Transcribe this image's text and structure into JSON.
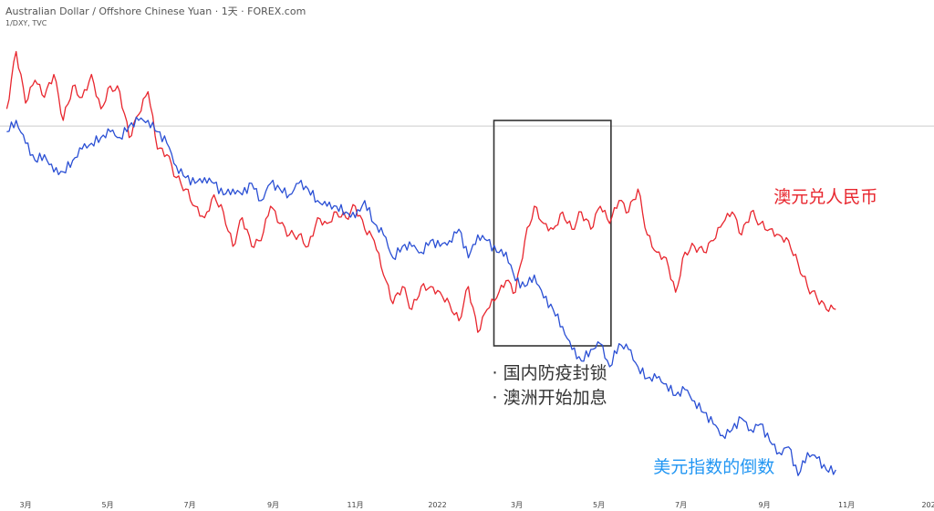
{
  "header": {
    "title": "Australian Dollar / Offshore Chinese Yuan · 1天 · FOREX.com",
    "subtitle": "1/DXY, TVC"
  },
  "annotations": {
    "box_lines": [
      "· 国内防疫封锁",
      "· 澳洲开始加息"
    ],
    "box_start": "2022-02-12",
    "box_end": "2022-05-10"
  },
  "chart_data": {
    "type": "line",
    "x_ticks": [
      {
        "date": "2021-03-01",
        "label": "3月"
      },
      {
        "date": "2021-05-01",
        "label": "5月"
      },
      {
        "date": "2021-07-01",
        "label": "7月"
      },
      {
        "date": "2021-09-01",
        "label": "9月"
      },
      {
        "date": "2021-11-01",
        "label": "11月"
      },
      {
        "date": "2022-01-01",
        "label": "2022"
      },
      {
        "date": "2022-03-01",
        "label": "3月"
      },
      {
        "date": "2022-05-01",
        "label": "5月"
      },
      {
        "date": "2022-07-01",
        "label": "7月"
      },
      {
        "date": "2022-09-01",
        "label": "9月"
      },
      {
        "date": "2022-11-01",
        "label": "11月"
      },
      {
        "date": "2023-01-01",
        "label": "202"
      }
    ],
    "xlim": [
      "2021-02-10",
      "2023-01-05"
    ],
    "ylim": [
      0.26,
      1.12
    ],
    "colors": {
      "red": "#e8262e",
      "blue": "#2a4fd4",
      "ref": "#cccccc"
    },
    "reference_line": 0.9,
    "series": [
      {
        "name": "澳元兑人民币",
        "color": "#e8262e",
        "x": [
          "2021-02-15",
          "2021-02-22",
          "2021-03-01",
          "2021-03-08",
          "2021-03-15",
          "2021-03-22",
          "2021-03-29",
          "2021-04-05",
          "2021-04-12",
          "2021-04-19",
          "2021-04-26",
          "2021-05-03",
          "2021-05-10",
          "2021-05-17",
          "2021-05-24",
          "2021-05-31",
          "2021-06-07",
          "2021-06-14",
          "2021-06-21",
          "2021-06-28",
          "2021-07-05",
          "2021-07-12",
          "2021-07-19",
          "2021-07-26",
          "2021-08-02",
          "2021-08-09",
          "2021-08-16",
          "2021-08-23",
          "2021-08-30",
          "2021-09-06",
          "2021-09-13",
          "2021-09-20",
          "2021-09-27",
          "2021-10-04",
          "2021-10-11",
          "2021-10-18",
          "2021-10-25",
          "2021-11-01",
          "2021-11-08",
          "2021-11-15",
          "2021-11-22",
          "2021-11-29",
          "2021-12-06",
          "2021-12-13",
          "2021-12-20",
          "2021-12-27",
          "2022-01-03",
          "2022-01-10",
          "2022-01-17",
          "2022-01-24",
          "2022-01-31",
          "2022-02-07",
          "2022-02-14",
          "2022-02-21",
          "2022-02-28",
          "2022-03-07",
          "2022-03-14",
          "2022-03-21",
          "2022-03-28",
          "2022-04-04",
          "2022-04-11",
          "2022-04-18",
          "2022-04-25",
          "2022-05-02",
          "2022-05-09",
          "2022-05-16",
          "2022-05-23",
          "2022-05-30",
          "2022-06-06",
          "2022-06-13",
          "2022-06-20",
          "2022-06-27",
          "2022-07-04",
          "2022-07-11",
          "2022-07-18",
          "2022-07-25",
          "2022-08-01",
          "2022-08-08",
          "2022-08-15",
          "2022-08-22",
          "2022-08-29",
          "2022-09-05",
          "2022-09-12",
          "2022-09-19",
          "2022-09-26",
          "2022-10-03",
          "2022-10-10",
          "2022-10-17",
          "2022-10-24"
        ],
        "y": [
          0.93,
          1.03,
          0.94,
          0.98,
          0.95,
          0.99,
          0.91,
          0.97,
          0.95,
          0.99,
          0.93,
          0.97,
          0.96,
          0.88,
          0.92,
          0.96,
          0.86,
          0.85,
          0.81,
          0.79,
          0.76,
          0.74,
          0.78,
          0.75,
          0.69,
          0.74,
          0.69,
          0.7,
          0.76,
          0.73,
          0.71,
          0.71,
          0.69,
          0.74,
          0.73,
          0.75,
          0.74,
          0.76,
          0.72,
          0.7,
          0.64,
          0.59,
          0.62,
          0.58,
          0.62,
          0.62,
          0.61,
          0.59,
          0.56,
          0.62,
          0.54,
          0.58,
          0.6,
          0.63,
          0.61,
          0.7,
          0.76,
          0.73,
          0.72,
          0.75,
          0.72,
          0.75,
          0.72,
          0.76,
          0.73,
          0.77,
          0.75,
          0.79,
          0.71,
          0.68,
          0.67,
          0.61,
          0.68,
          0.69,
          0.68,
          0.7,
          0.73,
          0.75,
          0.71,
          0.75,
          0.73,
          0.72,
          0.71,
          0.7,
          0.66,
          0.62,
          0.6,
          0.58,
          0.58
        ]
      },
      {
        "name": "美元指数的倒数",
        "color": "#2a4fd4",
        "x": [
          "2021-02-15",
          "2021-02-22",
          "2021-03-01",
          "2021-03-08",
          "2021-03-15",
          "2021-03-22",
          "2021-03-29",
          "2021-04-05",
          "2021-04-12",
          "2021-04-19",
          "2021-04-26",
          "2021-05-03",
          "2021-05-10",
          "2021-05-17",
          "2021-05-24",
          "2021-05-31",
          "2021-06-07",
          "2021-06-14",
          "2021-06-21",
          "2021-06-28",
          "2021-07-05",
          "2021-07-12",
          "2021-07-19",
          "2021-07-26",
          "2021-08-02",
          "2021-08-09",
          "2021-08-16",
          "2021-08-23",
          "2021-08-30",
          "2021-09-06",
          "2021-09-13",
          "2021-09-20",
          "2021-09-27",
          "2021-10-04",
          "2021-10-11",
          "2021-10-18",
          "2021-10-25",
          "2021-11-01",
          "2021-11-08",
          "2021-11-15",
          "2021-11-22",
          "2021-11-29",
          "2021-12-06",
          "2021-12-13",
          "2021-12-20",
          "2021-12-27",
          "2022-01-03",
          "2022-01-10",
          "2022-01-17",
          "2022-01-24",
          "2022-01-31",
          "2022-02-07",
          "2022-02-14",
          "2022-02-21",
          "2022-02-28",
          "2022-03-07",
          "2022-03-14",
          "2022-03-21",
          "2022-03-28",
          "2022-04-04",
          "2022-04-11",
          "2022-04-18",
          "2022-04-25",
          "2022-05-02",
          "2022-05-09",
          "2022-05-16",
          "2022-05-23",
          "2022-05-30",
          "2022-06-06",
          "2022-06-13",
          "2022-06-20",
          "2022-06-27",
          "2022-07-04",
          "2022-07-11",
          "2022-07-18",
          "2022-07-25",
          "2022-08-01",
          "2022-08-08",
          "2022-08-15",
          "2022-08-22",
          "2022-08-29",
          "2022-09-05",
          "2022-09-12",
          "2022-09-19",
          "2022-09-26",
          "2022-10-03",
          "2022-10-10",
          "2022-10-17",
          "2022-10-24"
        ],
        "y": [
          0.89,
          0.91,
          0.87,
          0.84,
          0.85,
          0.82,
          0.82,
          0.84,
          0.86,
          0.87,
          0.88,
          0.89,
          0.88,
          0.9,
          0.91,
          0.91,
          0.89,
          0.87,
          0.83,
          0.81,
          0.8,
          0.81,
          0.8,
          0.78,
          0.79,
          0.78,
          0.8,
          0.77,
          0.8,
          0.79,
          0.78,
          0.8,
          0.79,
          0.77,
          0.76,
          0.76,
          0.75,
          0.74,
          0.77,
          0.73,
          0.71,
          0.67,
          0.69,
          0.69,
          0.68,
          0.7,
          0.69,
          0.7,
          0.72,
          0.67,
          0.71,
          0.7,
          0.68,
          0.68,
          0.63,
          0.62,
          0.64,
          0.6,
          0.58,
          0.55,
          0.51,
          0.49,
          0.51,
          0.52,
          0.48,
          0.52,
          0.51,
          0.48,
          0.46,
          0.46,
          0.45,
          0.43,
          0.44,
          0.42,
          0.4,
          0.38,
          0.36,
          0.37,
          0.39,
          0.37,
          0.38,
          0.35,
          0.33,
          0.34,
          0.29,
          0.33,
          0.32,
          0.3,
          0.3
        ]
      }
    ]
  }
}
